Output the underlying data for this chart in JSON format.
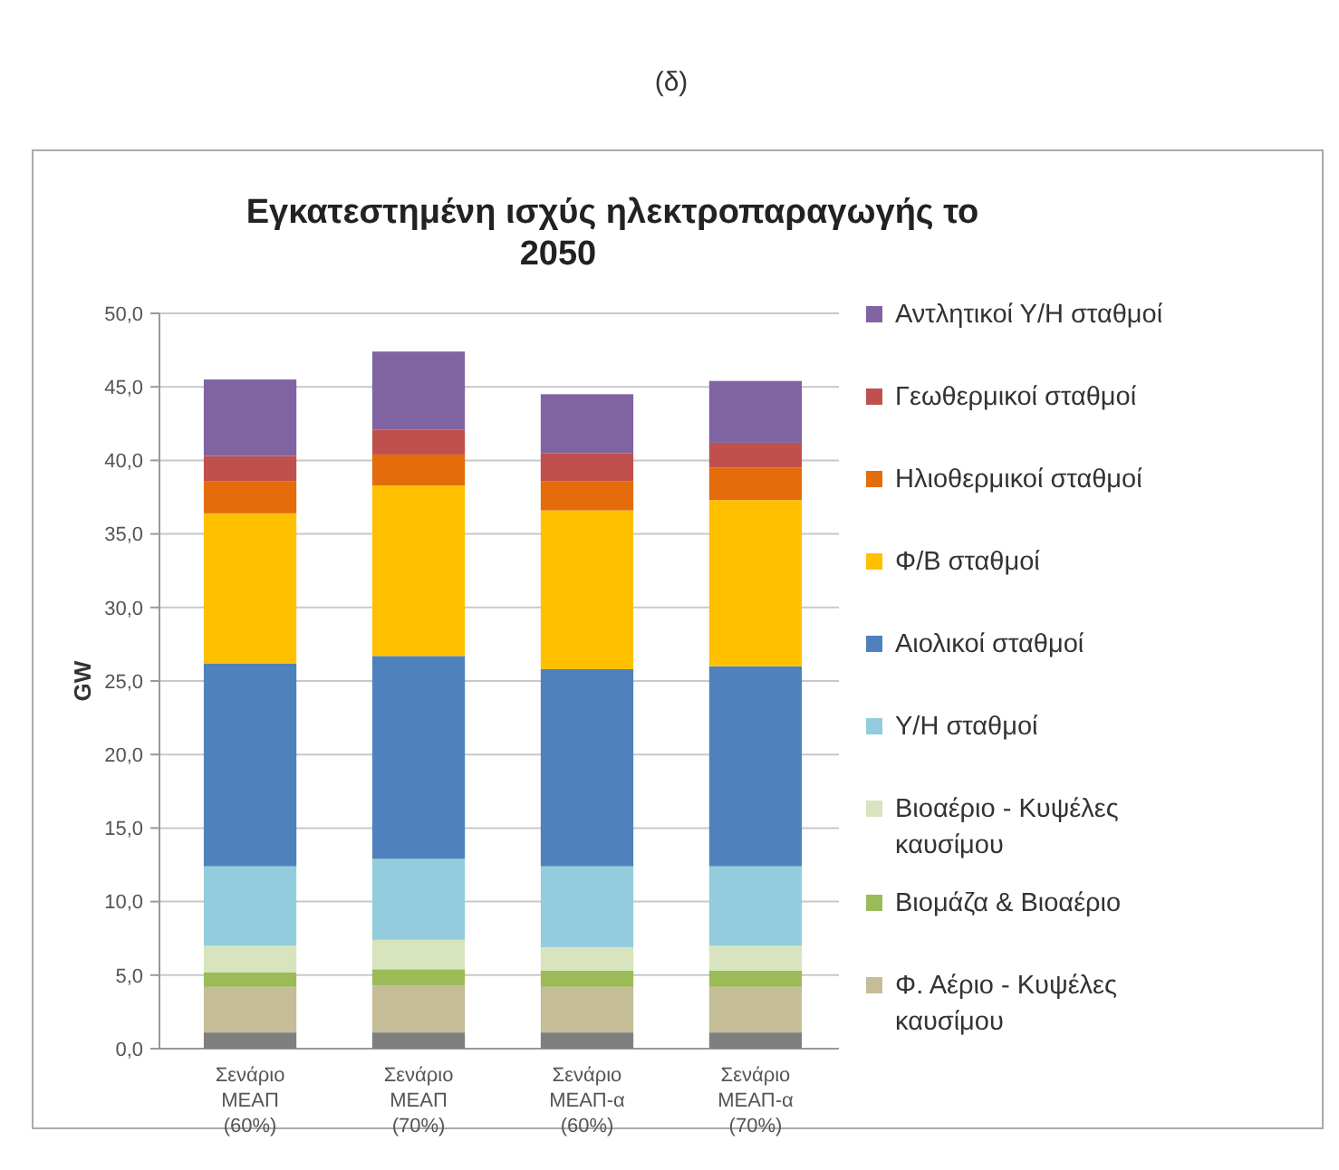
{
  "chart_data": {
    "type": "bar",
    "title": "Εγκατεστημένη ισχύς ηλεκτροπαραγωγής το 2050",
    "ylabel": "GW",
    "annotations": [
      "(δ)"
    ],
    "stacked": true,
    "legend": "right",
    "grid": "y",
    "categories": [
      "Σενάριο ΜΕΑΠ (60%)",
      "Σενάριο ΜΕΑΠ (70%)",
      "Σενάριο ΜΕΑΠ-α (60%)",
      "Σενάριο ΜΕΑΠ-α (70%)"
    ],
    "ylim": [
      0,
      50
    ],
    "yticks": [
      {
        "value": 0,
        "label": "0,0"
      },
      {
        "value": 5,
        "label": "5,0"
      },
      {
        "value": 10,
        "label": "10,0"
      },
      {
        "value": 15,
        "label": "15,0"
      },
      {
        "value": 20,
        "label": "20,0"
      },
      {
        "value": 25,
        "label": "25,0"
      },
      {
        "value": 30,
        "label": "30,0"
      },
      {
        "value": 35,
        "label": "35,0"
      },
      {
        "value": 40,
        "label": "40,0"
      },
      {
        "value": 45,
        "label": "45,0"
      },
      {
        "value": 50,
        "label": "50,0"
      }
    ],
    "series": [
      {
        "color": "#7f7f7f",
        "values": [
          1.1,
          1.1,
          1.1,
          1.1
        ]
      },
      {
        "name": "Φ. Αέριο - Κυψέλες καυσίμου",
        "color": "#c4bd97",
        "values": [
          3.1,
          3.2,
          3.1,
          3.1
        ]
      },
      {
        "name": "Βιομάζα & Βιοαέριο",
        "color": "#9bbb59",
        "values": [
          1.0,
          1.1,
          1.1,
          1.1
        ]
      },
      {
        "name": "Βιοαέριο - Κυψέλες καυσίμου",
        "color": "#d7e4bd",
        "values": [
          1.8,
          2.0,
          1.6,
          1.7
        ]
      },
      {
        "name": "Υ/Η σταθμοί",
        "color": "#93cddd",
        "values": [
          5.4,
          5.5,
          5.5,
          5.4
        ]
      },
      {
        "name": "Αιολικοί σταθμοί",
        "color": "#4f81bd",
        "values": [
          13.8,
          13.8,
          13.4,
          13.6
        ]
      },
      {
        "name": "Φ/Β σταθμοί",
        "color": "#ffc000",
        "values": [
          10.2,
          11.6,
          10.8,
          11.3
        ]
      },
      {
        "name": "Ηλιοθερμικοί σταθμοί",
        "color": "#e46c0a",
        "values": [
          2.2,
          2.1,
          2.0,
          2.2
        ]
      },
      {
        "name": "Γεωθερμικοί σταθμοί",
        "color": "#c0504d",
        "values": [
          1.7,
          1.7,
          1.9,
          1.7
        ]
      },
      {
        "name": "Αντλητικοί Υ/Η σταθμοί",
        "color": "#8064a2",
        "values": [
          5.2,
          5.3,
          4.0,
          4.2
        ]
      }
    ]
  }
}
